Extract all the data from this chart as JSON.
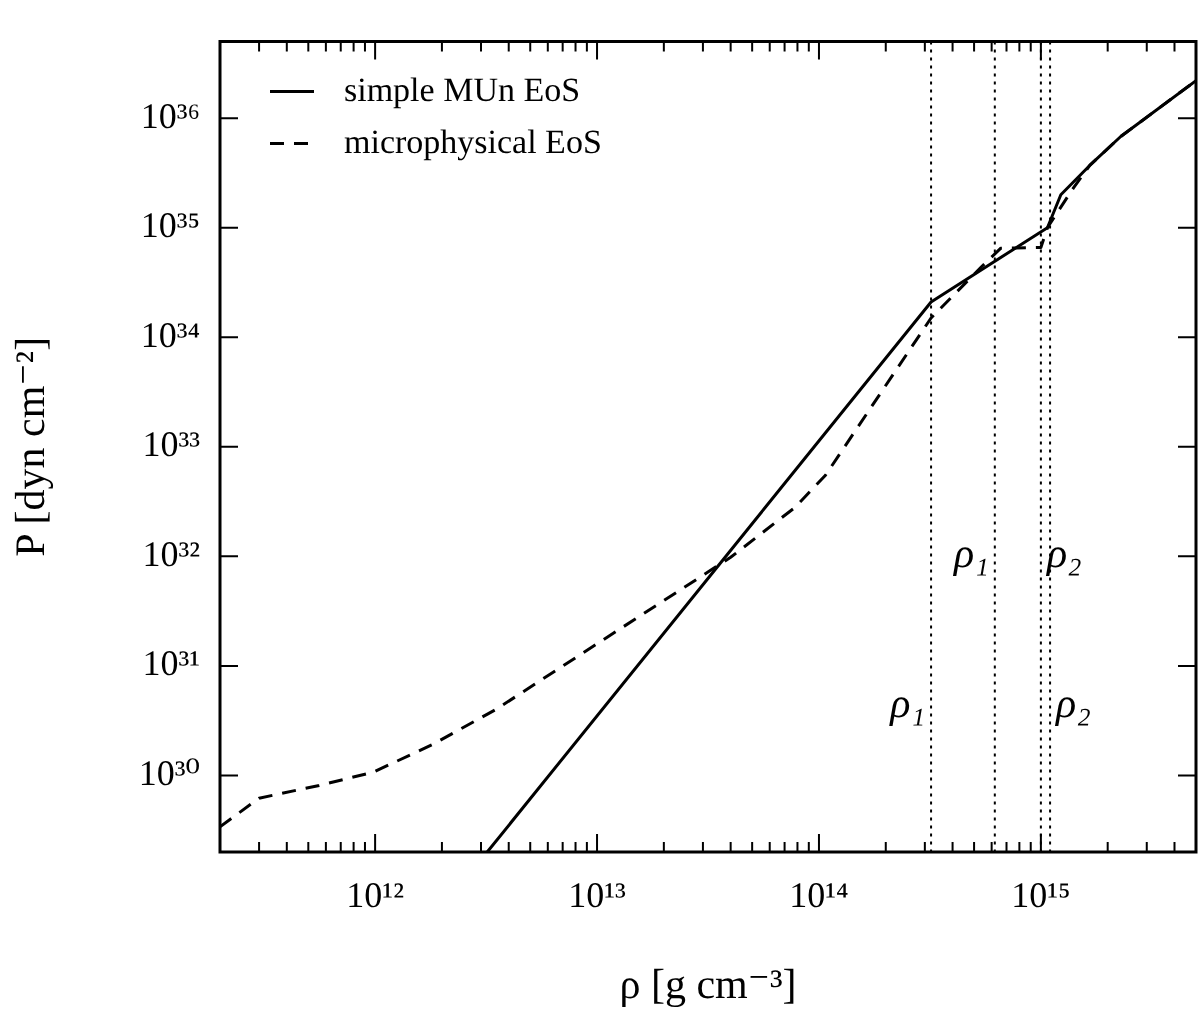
{
  "chart_data": {
    "type": "line",
    "xlabel": "ρ [g cm⁻³]",
    "ylabel": "P [dyn cm⁻²]",
    "log": "xy",
    "xlim": [
      200000000000.0,
      5000000000000000.0
    ],
    "ylim": [
      2e+29,
      5e+36
    ],
    "xticks": [
      {
        "value": 300000000000.0,
        "label": null
      },
      {
        "value": 400000000000.0,
        "label": null
      },
      {
        "value": 500000000000.0,
        "label": null
      },
      {
        "value": 600000000000.0,
        "label": null
      },
      {
        "value": 700000000000.0,
        "label": null
      },
      {
        "value": 800000000000.0,
        "label": null
      },
      {
        "value": 900000000000.0,
        "label": null
      },
      {
        "value": 1000000000000.0,
        "label": "10¹²"
      },
      {
        "value": 2000000000000.0,
        "label": null
      },
      {
        "value": 3000000000000.0,
        "label": null
      },
      {
        "value": 4000000000000.0,
        "label": null
      },
      {
        "value": 5000000000000.0,
        "label": null
      },
      {
        "value": 6000000000000.0,
        "label": null
      },
      {
        "value": 7000000000000.0,
        "label": null
      },
      {
        "value": 8000000000000.0,
        "label": null
      },
      {
        "value": 9000000000000.0,
        "label": null
      },
      {
        "value": 10000000000000.0,
        "label": "10¹³"
      },
      {
        "value": 20000000000000.0,
        "label": null
      },
      {
        "value": 30000000000000.0,
        "label": null
      },
      {
        "value": 40000000000000.0,
        "label": null
      },
      {
        "value": 50000000000000.0,
        "label": null
      },
      {
        "value": 60000000000000.0,
        "label": null
      },
      {
        "value": 70000000000000.0,
        "label": null
      },
      {
        "value": 80000000000000.0,
        "label": null
      },
      {
        "value": 90000000000000.0,
        "label": null
      },
      {
        "value": 100000000000000.0,
        "label": "10¹⁴"
      },
      {
        "value": 200000000000000.0,
        "label": null
      },
      {
        "value": 300000000000000.0,
        "label": null
      },
      {
        "value": 400000000000000.0,
        "label": null
      },
      {
        "value": 500000000000000.0,
        "label": null
      },
      {
        "value": 600000000000000.0,
        "label": null
      },
      {
        "value": 700000000000000.0,
        "label": null
      },
      {
        "value": 800000000000000.0,
        "label": null
      },
      {
        "value": 900000000000000.0,
        "label": null
      },
      {
        "value": 1000000000000000.0,
        "label": "10¹⁵"
      },
      {
        "value": 2000000000000000.0,
        "label": null
      },
      {
        "value": 3000000000000000.0,
        "label": null
      },
      {
        "value": 4000000000000000.0,
        "label": null
      }
    ],
    "yticks": [
      {
        "value": 1e+30,
        "label": "10³⁰"
      },
      {
        "value": 1e+31,
        "label": "10³¹"
      },
      {
        "value": 1e+32,
        "label": "10³²"
      },
      {
        "value": 1e+33,
        "label": "10³³"
      },
      {
        "value": 1e+34,
        "label": "10³⁴"
      },
      {
        "value": 1e+35,
        "label": "10³⁵"
      },
      {
        "value": 1e+36,
        "label": "10³⁶"
      }
    ],
    "grid": false,
    "legend": "top left",
    "marker": "none",
    "series": [
      {
        "name": "simple MUn EoS",
        "color": "#000000",
        "line_style": "solid",
        "x": [
          3200000000000.0,
          320000000000000.0,
          1070000000000000.0,
          1230000000000000.0,
          1660000000000000.0,
          2290000000000000.0,
          5000000000000000.0
        ],
        "values": [
          2e+29,
          2.1e+34,
          1e+35,
          2e+35,
          3.7e+35,
          6.8e+35,
          2.2e+36
        ]
      },
      {
        "name": "microphysical EoS",
        "color": "#000000",
        "line_style": "dashed",
        "x": [
          200000000000.0,
          300000000000.0,
          560000000000.0,
          980000000000.0,
          1800000000000.0,
          3500000000000.0,
          9800000000000.0,
          40000000000000.0,
          78000000000000.0,
          107000000000000.0,
          320000000000000.0,
          540000000000000.0,
          660000000000000.0,
          1000000000000000.0,
          1070000000000000.0,
          1400000000000000.0,
          1660000000000000.0,
          2290000000000000.0,
          5000000000000000.0
        ],
        "values": [
          3.4e+29,
          6.2e+29,
          8.1e+29,
          1.07e+30,
          1.9e+30,
          4e+30,
          1.55e+31,
          9.8e+31,
          2.8e+32,
          5.5e+32,
          1.5e+34,
          4.4e+34,
          6.5e+34,
          6.6e+34,
          1e+35,
          2.3e+35,
          3.7e+35,
          6.8e+35,
          2.2e+36
        ]
      }
    ],
    "ref_lines": [
      {
        "axis": "x",
        "value": 620000000000000.0,
        "label": "ρ₁",
        "line_style": "dotted"
      },
      {
        "axis": "x",
        "value": 1000000000000000.0,
        "label": "ρ₂",
        "line_style": "dotted"
      },
      {
        "axis": "x",
        "value": 320000000000000.0,
        "label": "ρ₁",
        "line_style": "dotted"
      },
      {
        "axis": "x",
        "value": 1100000000000000.0,
        "label": "ρ₂",
        "line_style": "dotted"
      }
    ]
  }
}
